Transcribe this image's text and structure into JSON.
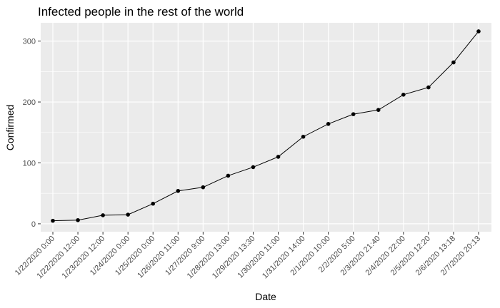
{
  "chart_data": {
    "type": "line",
    "title": "Infected people in the rest of the world",
    "xlabel": "Date",
    "ylabel": "Confirmed",
    "categories": [
      "1/22/2020 0:00",
      "1/22/2020 12:00",
      "1/23/2020 12:00",
      "1/24/2020 0:00",
      "1/25/2020 0:00",
      "1/26/2020 11:00",
      "1/27/2020 9:00",
      "1/28/2020 13:00",
      "1/29/2020 13:30",
      "1/30/2020 11:00",
      "1/31/2020 14:00",
      "2/1/2020 10:00",
      "2/2/2020 5:00",
      "2/3/2020 21:40",
      "2/4/2020 22:00",
      "2/5/2020 12:20",
      "2/6/2020 13:18",
      "2/7/2020 20:13"
    ],
    "series": [
      {
        "values": [
          5,
          6,
          14,
          15,
          33,
          54,
          60,
          79,
          93,
          110,
          143,
          164,
          180,
          187,
          212,
          224,
          265,
          316
        ]
      }
    ],
    "yticks": [
      0,
      100,
      200,
      300
    ],
    "ylim": [
      -13,
      330
    ],
    "grid": true,
    "colors": {
      "panel": "#ebebeb",
      "grid": "#ffffff",
      "line": "#000000",
      "point": "#000000"
    }
  }
}
